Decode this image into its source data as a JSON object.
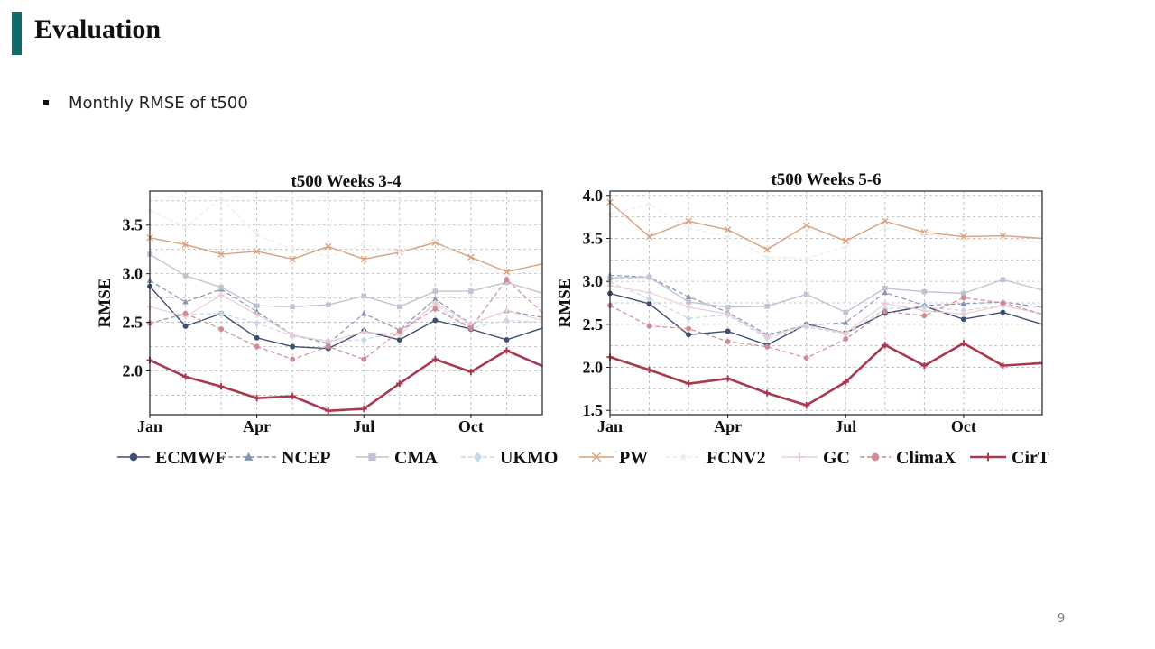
{
  "slide": {
    "title": "Evaluation",
    "bullet": "Monthly RMSE of t500",
    "page_number": "9",
    "accent_color": "#0f6b6b"
  },
  "legend": [
    {
      "name": "ECMWF",
      "color": "#3f4f73",
      "marker": "circle",
      "dash": "solid",
      "width": 1.4
    },
    {
      "name": "NCEP",
      "color": "#8794b3",
      "marker": "triangle",
      "dash": "dashed",
      "width": 1.2
    },
    {
      "name": "CMA",
      "color": "#c2c2d4",
      "marker": "square",
      "dash": "solid",
      "width": 1.4
    },
    {
      "name": "UKMO",
      "color": "#c7d7e8",
      "marker": "diamond",
      "dash": "dashed",
      "width": 1.2
    },
    {
      "name": "PW",
      "color": "#d9a07c",
      "marker": "x",
      "dash": "solid",
      "width": 1.4
    },
    {
      "name": "FCNV2",
      "color": "#ececec",
      "marker": "star",
      "dash": "dashed",
      "width": 1.2
    },
    {
      "name": "GC",
      "color": "#ebcdd6",
      "marker": "plus",
      "dash": "solid",
      "width": 1.2
    },
    {
      "name": "ClimaX",
      "color": "#cf8b95",
      "marker": "circle",
      "dash": "dashed",
      "width": 1.2
    },
    {
      "name": "CirT",
      "color": "#a8394f",
      "marker": "plus",
      "dash": "solid",
      "width": 2.6
    }
  ],
  "chart_data": [
    {
      "type": "line",
      "title": "t500 Weeks 3-4",
      "ylabel": "RMSE",
      "xlabel": "",
      "x": [
        1,
        2,
        3,
        4,
        5,
        6,
        7,
        8,
        9,
        10,
        11,
        12
      ],
      "xticks": [
        1,
        4,
        7,
        10
      ],
      "xtick_labels": [
        "Jan",
        "Apr",
        "Jul",
        "Oct"
      ],
      "ylim": [
        1.55,
        3.85
      ],
      "yticks": [
        2.0,
        2.5,
        3.0,
        3.5
      ],
      "ytick_labels": [
        "2.0",
        "2.5",
        "3.0",
        "3.5"
      ],
      "grid": true,
      "series": [
        {
          "name": "ECMWF",
          "values": [
            2.87,
            2.46,
            2.59,
            2.34,
            2.25,
            2.23,
            2.41,
            2.32,
            2.52,
            2.43,
            2.32,
            2.44
          ]
        },
        {
          "name": "NCEP",
          "values": [
            2.93,
            2.71,
            2.84,
            2.61,
            2.37,
            2.28,
            2.59,
            2.42,
            2.74,
            2.48,
            2.62,
            2.55
          ]
        },
        {
          "name": "CMA",
          "values": [
            3.2,
            2.98,
            2.86,
            2.67,
            2.66,
            2.68,
            2.77,
            2.66,
            2.82,
            2.82,
            2.91,
            2.8
          ]
        },
        {
          "name": "UKMO",
          "values": [
            2.49,
            2.58,
            2.59,
            2.49,
            2.36,
            2.31,
            2.32,
            2.41,
            2.68,
            2.44,
            2.52,
            2.5
          ]
        },
        {
          "name": "PW",
          "values": [
            3.37,
            3.3,
            3.2,
            3.23,
            3.15,
            3.28,
            3.15,
            3.22,
            3.32,
            3.17,
            3.02,
            3.1
          ]
        },
        {
          "name": "FCNV2",
          "values": [
            3.65,
            3.48,
            3.78,
            3.4,
            3.25,
            3.18,
            3.3,
            3.22,
            3.35,
            3.12,
            2.98,
            3.05
          ]
        },
        {
          "name": "GC",
          "values": [
            2.66,
            2.56,
            2.78,
            2.58,
            2.37,
            2.3,
            2.4,
            2.37,
            2.7,
            2.48,
            2.62,
            2.52
          ]
        },
        {
          "name": "ClimaX",
          "values": [
            2.49,
            2.59,
            2.43,
            2.25,
            2.12,
            2.25,
            2.12,
            2.41,
            2.64,
            2.44,
            2.94,
            2.6
          ]
        },
        {
          "name": "CirT",
          "values": [
            2.11,
            1.94,
            1.84,
            1.72,
            1.74,
            1.59,
            1.61,
            1.87,
            2.12,
            1.99,
            2.21,
            2.05
          ]
        }
      ]
    },
    {
      "type": "line",
      "title": "t500 Weeks 5-6",
      "ylabel": "RMSE",
      "xlabel": "",
      "x": [
        1,
        2,
        3,
        4,
        5,
        6,
        7,
        8,
        9,
        10,
        11,
        12
      ],
      "xticks": [
        1,
        4,
        7,
        10
      ],
      "xtick_labels": [
        "Jan",
        "Apr",
        "Jul",
        "Oct"
      ],
      "ylim": [
        1.45,
        4.05
      ],
      "yticks": [
        1.5,
        2.0,
        2.5,
        3.0,
        3.5,
        4.0
      ],
      "ytick_labels": [
        "1.5",
        "2.0",
        "2.5",
        "3.0",
        "3.5",
        "4.0"
      ],
      "grid": true,
      "series": [
        {
          "name": "ECMWF",
          "values": [
            2.86,
            2.74,
            2.38,
            2.42,
            2.26,
            2.5,
            2.4,
            2.63,
            2.71,
            2.56,
            2.64,
            2.5
          ]
        },
        {
          "name": "NCEP",
          "values": [
            3.07,
            3.05,
            2.82,
            2.64,
            2.38,
            2.49,
            2.52,
            2.87,
            2.72,
            2.74,
            2.76,
            2.7
          ]
        },
        {
          "name": "CMA",
          "values": [
            3.04,
            3.05,
            2.76,
            2.7,
            2.71,
            2.85,
            2.64,
            2.92,
            2.88,
            2.86,
            3.02,
            2.9
          ]
        },
        {
          "name": "UKMO",
          "values": [
            2.99,
            2.8,
            2.57,
            2.61,
            2.34,
            2.47,
            2.39,
            2.68,
            2.7,
            2.66,
            2.72,
            2.7
          ]
        },
        {
          "name": "PW",
          "values": [
            3.92,
            3.52,
            3.7,
            3.6,
            3.37,
            3.65,
            3.47,
            3.7,
            3.57,
            3.52,
            3.53,
            3.5
          ]
        },
        {
          "name": "FCNV2",
          "values": [
            3.78,
            3.9,
            3.62,
            3.52,
            3.28,
            3.27,
            3.4,
            3.62,
            3.55,
            3.48,
            3.5,
            3.45
          ]
        },
        {
          "name": "GC",
          "values": [
            2.95,
            2.87,
            2.7,
            2.62,
            2.36,
            2.49,
            2.4,
            2.74,
            2.66,
            2.62,
            2.72,
            2.62
          ]
        },
        {
          "name": "ClimaX",
          "values": [
            2.72,
            2.48,
            2.45,
            2.3,
            2.24,
            2.11,
            2.33,
            2.65,
            2.6,
            2.81,
            2.75,
            2.62
          ]
        },
        {
          "name": "CirT",
          "values": [
            2.12,
            1.97,
            1.81,
            1.87,
            1.7,
            1.56,
            1.83,
            2.26,
            2.02,
            2.28,
            2.02,
            2.05
          ]
        }
      ]
    }
  ]
}
